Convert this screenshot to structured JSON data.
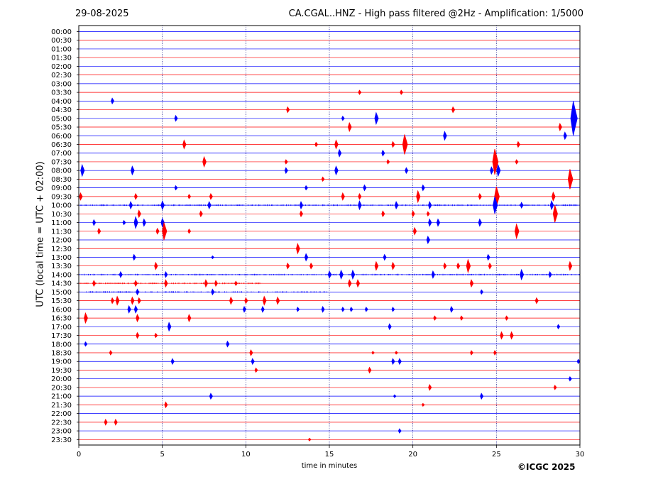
{
  "header": {
    "date": "29-08-2025",
    "title": "CA.CGAL..HNZ - High pass filtered @2Hz - Amplification: 1/5000"
  },
  "footer": {
    "credit": "©ICGC 2025"
  },
  "colors": {
    "red_trace": "#ff0000",
    "blue_trace": "#0000ff",
    "grid": "#000080"
  },
  "chart_data": {
    "type": "line",
    "title": "CA.CGAL..HNZ - High pass filtered @2Hz - Amplification: 1/5000",
    "xlabel": "time in minutes",
    "ylabel": "UTC (local time = UTC + 02:00)",
    "xlim": [
      0,
      30
    ],
    "x_ticks": [
      "0",
      "5",
      "10",
      "15",
      "20",
      "25",
      "30"
    ],
    "vertical_gridlines_minutes": [
      5,
      10,
      15,
      20,
      25
    ],
    "rows": [
      "00:00",
      "00:30",
      "01:00",
      "01:30",
      "02:00",
      "02:30",
      "03:00",
      "03:30",
      "04:00",
      "04:30",
      "05:00",
      "05:30",
      "06:00",
      "06:30",
      "07:00",
      "07:30",
      "08:00",
      "08:30",
      "09:00",
      "09:30",
      "10:00",
      "10:30",
      "11:00",
      "11:30",
      "12:00",
      "12:30",
      "13:00",
      "13:30",
      "14:00",
      "14:30",
      "15:00",
      "15:30",
      "16:00",
      "16:30",
      "17:00",
      "17:30",
      "18:00",
      "18:30",
      "19:00",
      "19:30",
      "20:00",
      "20:30",
      "21:00",
      "21:30",
      "22:00",
      "22:30",
      "23:00",
      "23:30"
    ],
    "row_colors": [
      "blue",
      "red"
    ],
    "noise_bursts": [
      {
        "row": "10:00",
        "from": 0,
        "to": 30
      },
      {
        "row": "14:00",
        "from": 0,
        "to": 30
      },
      {
        "row": "14:30",
        "from": 0,
        "to": 11
      },
      {
        "row": "15:00",
        "from": 0,
        "to": 15
      }
    ],
    "events": [
      {
        "row": "03:30",
        "minute": 16.8,
        "amplitude": 3
      },
      {
        "row": "03:30",
        "minute": 19.3,
        "amplitude": 3
      },
      {
        "row": "04:00",
        "minute": 2.0,
        "amplitude": 4
      },
      {
        "row": "04:30",
        "minute": 12.5,
        "amplitude": 4
      },
      {
        "row": "04:30",
        "minute": 22.4,
        "amplitude": 4
      },
      {
        "row": "05:00",
        "minute": 5.8,
        "amplitude": 4
      },
      {
        "row": "05:00",
        "minute": 15.8,
        "amplitude": 3
      },
      {
        "row": "05:00",
        "minute": 17.8,
        "amplitude": 8
      },
      {
        "row": "05:00",
        "minute": 29.6,
        "amplitude": 24
      },
      {
        "row": "05:30",
        "minute": 16.2,
        "amplitude": 6
      },
      {
        "row": "05:30",
        "minute": 28.8,
        "amplitude": 5
      },
      {
        "row": "06:00",
        "minute": 21.9,
        "amplitude": 6
      },
      {
        "row": "06:00",
        "minute": 29.1,
        "amplitude": 5
      },
      {
        "row": "06:30",
        "minute": 6.3,
        "amplitude": 6
      },
      {
        "row": "06:30",
        "minute": 14.2,
        "amplitude": 3
      },
      {
        "row": "06:30",
        "minute": 15.4,
        "amplitude": 6
      },
      {
        "row": "06:30",
        "minute": 18.8,
        "amplitude": 4
      },
      {
        "row": "06:30",
        "minute": 19.5,
        "amplitude": 14
      },
      {
        "row": "06:30",
        "minute": 26.3,
        "amplitude": 4
      },
      {
        "row": "07:00",
        "minute": 15.6,
        "amplitude": 5
      },
      {
        "row": "07:00",
        "minute": 18.2,
        "amplitude": 4
      },
      {
        "row": "07:30",
        "minute": 7.5,
        "amplitude": 7
      },
      {
        "row": "07:30",
        "minute": 12.4,
        "amplitude": 3
      },
      {
        "row": "07:30",
        "minute": 18.5,
        "amplitude": 3
      },
      {
        "row": "07:30",
        "minute": 24.9,
        "amplitude": 18
      },
      {
        "row": "07:30",
        "minute": 26.2,
        "amplitude": 3
      },
      {
        "row": "08:00",
        "minute": 0.2,
        "amplitude": 8
      },
      {
        "row": "08:00",
        "minute": 3.2,
        "amplitude": 6
      },
      {
        "row": "08:00",
        "minute": 12.4,
        "amplitude": 4
      },
      {
        "row": "08:00",
        "minute": 15.4,
        "amplitude": 6
      },
      {
        "row": "08:00",
        "minute": 19.6,
        "amplitude": 4
      },
      {
        "row": "08:00",
        "minute": 24.7,
        "amplitude": 5
      },
      {
        "row": "08:00",
        "minute": 25.1,
        "amplitude": 8
      },
      {
        "row": "08:30",
        "minute": 14.6,
        "amplitude": 3
      },
      {
        "row": "08:30",
        "minute": 29.4,
        "amplitude": 14
      },
      {
        "row": "09:00",
        "minute": 5.8,
        "amplitude": 3
      },
      {
        "row": "09:00",
        "minute": 13.6,
        "amplitude": 3
      },
      {
        "row": "09:00",
        "minute": 17.1,
        "amplitude": 4
      },
      {
        "row": "09:00",
        "minute": 20.6,
        "amplitude": 4
      },
      {
        "row": "09:30",
        "minute": 0.1,
        "amplitude": 5
      },
      {
        "row": "09:30",
        "minute": 3.4,
        "amplitude": 4
      },
      {
        "row": "09:30",
        "minute": 6.6,
        "amplitude": 3
      },
      {
        "row": "09:30",
        "minute": 7.9,
        "amplitude": 4
      },
      {
        "row": "09:30",
        "minute": 15.8,
        "amplitude": 5
      },
      {
        "row": "09:30",
        "minute": 16.8,
        "amplitude": 4
      },
      {
        "row": "09:30",
        "minute": 20.3,
        "amplitude": 8
      },
      {
        "row": "09:30",
        "minute": 24.0,
        "amplitude": 4
      },
      {
        "row": "09:30",
        "minute": 25.0,
        "amplitude": 14
      },
      {
        "row": "09:30",
        "minute": 28.4,
        "amplitude": 6
      },
      {
        "row": "10:00",
        "minute": 3.1,
        "amplitude": 5
      },
      {
        "row": "10:00",
        "minute": 5.0,
        "amplitude": 6
      },
      {
        "row": "10:00",
        "minute": 7.8,
        "amplitude": 5
      },
      {
        "row": "10:00",
        "minute": 13.3,
        "amplitude": 5
      },
      {
        "row": "10:00",
        "minute": 16.8,
        "amplitude": 6
      },
      {
        "row": "10:00",
        "minute": 19.0,
        "amplitude": 5
      },
      {
        "row": "10:00",
        "minute": 21.0,
        "amplitude": 5
      },
      {
        "row": "10:00",
        "minute": 24.9,
        "amplitude": 12
      },
      {
        "row": "10:00",
        "minute": 26.5,
        "amplitude": 4
      },
      {
        "row": "10:00",
        "minute": 28.3,
        "amplitude": 6
      },
      {
        "row": "10:30",
        "minute": 3.6,
        "amplitude": 5
      },
      {
        "row": "10:30",
        "minute": 7.3,
        "amplitude": 4
      },
      {
        "row": "10:30",
        "minute": 13.3,
        "amplitude": 4
      },
      {
        "row": "10:30",
        "minute": 18.2,
        "amplitude": 4
      },
      {
        "row": "10:30",
        "minute": 20.0,
        "amplitude": 4
      },
      {
        "row": "10:30",
        "minute": 20.9,
        "amplitude": 3
      },
      {
        "row": "10:30",
        "minute": 28.5,
        "amplitude": 12
      },
      {
        "row": "11:00",
        "minute": 0.9,
        "amplitude": 4
      },
      {
        "row": "11:00",
        "minute": 2.7,
        "amplitude": 3
      },
      {
        "row": "11:00",
        "minute": 3.4,
        "amplitude": 8
      },
      {
        "row": "11:00",
        "minute": 3.9,
        "amplitude": 5
      },
      {
        "row": "11:00",
        "minute": 5.0,
        "amplitude": 6
      },
      {
        "row": "11:00",
        "minute": 21.0,
        "amplitude": 5
      },
      {
        "row": "11:00",
        "minute": 21.5,
        "amplitude": 5
      },
      {
        "row": "11:00",
        "minute": 24.0,
        "amplitude": 5
      },
      {
        "row": "11:30",
        "minute": 1.2,
        "amplitude": 4
      },
      {
        "row": "11:30",
        "minute": 4.7,
        "amplitude": 4
      },
      {
        "row": "11:30",
        "minute": 5.1,
        "amplitude": 12
      },
      {
        "row": "11:30",
        "minute": 6.6,
        "amplitude": 3
      },
      {
        "row": "11:30",
        "minute": 20.1,
        "amplitude": 5
      },
      {
        "row": "11:30",
        "minute": 26.2,
        "amplitude": 10
      },
      {
        "row": "12:00",
        "minute": 20.9,
        "amplitude": 5
      },
      {
        "row": "12:30",
        "minute": 13.1,
        "amplitude": 7
      },
      {
        "row": "13:00",
        "minute": 3.3,
        "amplitude": 4
      },
      {
        "row": "13:00",
        "minute": 8.0,
        "amplitude": 2
      },
      {
        "row": "13:00",
        "minute": 13.6,
        "amplitude": 5
      },
      {
        "row": "13:00",
        "minute": 18.3,
        "amplitude": 4
      },
      {
        "row": "13:00",
        "minute": 24.5,
        "amplitude": 4
      },
      {
        "row": "13:30",
        "minute": 4.6,
        "amplitude": 5
      },
      {
        "row": "13:30",
        "minute": 12.5,
        "amplitude": 4
      },
      {
        "row": "13:30",
        "minute": 13.9,
        "amplitude": 4
      },
      {
        "row": "13:30",
        "minute": 17.8,
        "amplitude": 6
      },
      {
        "row": "13:30",
        "minute": 18.8,
        "amplitude": 5
      },
      {
        "row": "13:30",
        "minute": 21.9,
        "amplitude": 4
      },
      {
        "row": "13:30",
        "minute": 22.7,
        "amplitude": 4
      },
      {
        "row": "13:30",
        "minute": 23.3,
        "amplitude": 9
      },
      {
        "row": "13:30",
        "minute": 24.6,
        "amplitude": 4
      },
      {
        "row": "13:30",
        "minute": 29.4,
        "amplitude": 6
      },
      {
        "row": "14:00",
        "minute": 2.5,
        "amplitude": 4
      },
      {
        "row": "14:00",
        "minute": 5.2,
        "amplitude": 4
      },
      {
        "row": "14:00",
        "minute": 15.0,
        "amplitude": 5
      },
      {
        "row": "14:00",
        "minute": 15.7,
        "amplitude": 6
      },
      {
        "row": "14:00",
        "minute": 16.4,
        "amplitude": 6
      },
      {
        "row": "14:00",
        "minute": 21.2,
        "amplitude": 5
      },
      {
        "row": "14:00",
        "minute": 26.5,
        "amplitude": 7
      },
      {
        "row": "14:00",
        "minute": 28.2,
        "amplitude": 4
      },
      {
        "row": "14:30",
        "minute": 0.9,
        "amplitude": 4
      },
      {
        "row": "14:30",
        "minute": 3.4,
        "amplitude": 4
      },
      {
        "row": "14:30",
        "minute": 5.2,
        "amplitude": 5
      },
      {
        "row": "14:30",
        "minute": 7.6,
        "amplitude": 5
      },
      {
        "row": "14:30",
        "minute": 8.2,
        "amplitude": 4
      },
      {
        "row": "14:30",
        "minute": 9.4,
        "amplitude": 3
      },
      {
        "row": "14:30",
        "minute": 16.2,
        "amplitude": 5
      },
      {
        "row": "14:30",
        "minute": 16.7,
        "amplitude": 5
      },
      {
        "row": "14:30",
        "minute": 23.5,
        "amplitude": 5
      },
      {
        "row": "15:00",
        "minute": 3.5,
        "amplitude": 4
      },
      {
        "row": "15:00",
        "minute": 8.0,
        "amplitude": 4
      },
      {
        "row": "15:00",
        "minute": 24.1,
        "amplitude": 3
      },
      {
        "row": "15:30",
        "minute": 2.0,
        "amplitude": 4
      },
      {
        "row": "15:30",
        "minute": 2.3,
        "amplitude": 6
      },
      {
        "row": "15:30",
        "minute": 3.2,
        "amplitude": 5
      },
      {
        "row": "15:30",
        "minute": 3.6,
        "amplitude": 4
      },
      {
        "row": "15:30",
        "minute": 9.1,
        "amplitude": 5
      },
      {
        "row": "15:30",
        "minute": 10.0,
        "amplitude": 4
      },
      {
        "row": "15:30",
        "minute": 11.1,
        "amplitude": 6
      },
      {
        "row": "15:30",
        "minute": 11.9,
        "amplitude": 5
      },
      {
        "row": "15:30",
        "minute": 27.4,
        "amplitude": 4
      },
      {
        "row": "16:00",
        "minute": 3.0,
        "amplitude": 5
      },
      {
        "row": "16:00",
        "minute": 3.4,
        "amplitude": 5
      },
      {
        "row": "16:00",
        "minute": 9.9,
        "amplitude": 4
      },
      {
        "row": "16:00",
        "minute": 11.0,
        "amplitude": 4
      },
      {
        "row": "16:00",
        "minute": 13.1,
        "amplitude": 3
      },
      {
        "row": "16:00",
        "minute": 14.6,
        "amplitude": 4
      },
      {
        "row": "16:00",
        "minute": 15.8,
        "amplitude": 3
      },
      {
        "row": "16:00",
        "minute": 16.3,
        "amplitude": 3
      },
      {
        "row": "16:00",
        "minute": 17.2,
        "amplitude": 3
      },
      {
        "row": "16:00",
        "minute": 18.8,
        "amplitude": 3
      },
      {
        "row": "16:00",
        "minute": 22.3,
        "amplitude": 4
      },
      {
        "row": "16:30",
        "minute": 0.4,
        "amplitude": 7
      },
      {
        "row": "16:30",
        "minute": 3.5,
        "amplitude": 5
      },
      {
        "row": "16:30",
        "minute": 6.6,
        "amplitude": 5
      },
      {
        "row": "16:30",
        "minute": 21.3,
        "amplitude": 3
      },
      {
        "row": "16:30",
        "minute": 22.9,
        "amplitude": 3
      },
      {
        "row": "16:30",
        "minute": 25.6,
        "amplitude": 3
      },
      {
        "row": "17:00",
        "minute": 5.4,
        "amplitude": 6
      },
      {
        "row": "17:00",
        "minute": 18.6,
        "amplitude": 4
      },
      {
        "row": "17:00",
        "minute": 28.7,
        "amplitude": 3
      },
      {
        "row": "17:30",
        "minute": 3.5,
        "amplitude": 4
      },
      {
        "row": "17:30",
        "minute": 4.6,
        "amplitude": 3
      },
      {
        "row": "17:30",
        "minute": 25.3,
        "amplitude": 5
      },
      {
        "row": "17:30",
        "minute": 25.9,
        "amplitude": 5
      },
      {
        "row": "18:00",
        "minute": 0.4,
        "amplitude": 3
      },
      {
        "row": "18:00",
        "minute": 8.9,
        "amplitude": 4
      },
      {
        "row": "18:30",
        "minute": 1.9,
        "amplitude": 3
      },
      {
        "row": "18:30",
        "minute": 10.3,
        "amplitude": 4
      },
      {
        "row": "18:30",
        "minute": 17.6,
        "amplitude": 2
      },
      {
        "row": "18:30",
        "minute": 19.0,
        "amplitude": 2
      },
      {
        "row": "18:30",
        "minute": 23.5,
        "amplitude": 3
      },
      {
        "row": "18:30",
        "minute": 24.9,
        "amplitude": 3
      },
      {
        "row": "19:00",
        "minute": 5.6,
        "amplitude": 4
      },
      {
        "row": "19:00",
        "minute": 10.4,
        "amplitude": 4
      },
      {
        "row": "19:00",
        "minute": 18.8,
        "amplitude": 4
      },
      {
        "row": "19:00",
        "minute": 19.2,
        "amplitude": 4
      },
      {
        "row": "19:00",
        "minute": 29.9,
        "amplitude": 3
      },
      {
        "row": "19:30",
        "minute": 10.6,
        "amplitude": 3
      },
      {
        "row": "19:30",
        "minute": 17.4,
        "amplitude": 4
      },
      {
        "row": "20:00",
        "minute": 29.4,
        "amplitude": 3
      },
      {
        "row": "20:30",
        "minute": 21.0,
        "amplitude": 4
      },
      {
        "row": "20:30",
        "minute": 28.5,
        "amplitude": 3
      },
      {
        "row": "21:00",
        "minute": 7.9,
        "amplitude": 4
      },
      {
        "row": "21:00",
        "minute": 18.9,
        "amplitude": 2
      },
      {
        "row": "21:00",
        "minute": 24.1,
        "amplitude": 4
      },
      {
        "row": "21:30",
        "minute": 5.2,
        "amplitude": 4
      },
      {
        "row": "21:30",
        "minute": 20.6,
        "amplitude": 2
      },
      {
        "row": "22:30",
        "minute": 1.6,
        "amplitude": 4
      },
      {
        "row": "22:30",
        "minute": 2.2,
        "amplitude": 4
      },
      {
        "row": "23:00",
        "minute": 19.2,
        "amplitude": 3
      },
      {
        "row": "23:30",
        "minute": 13.8,
        "amplitude": 2
      }
    ]
  }
}
